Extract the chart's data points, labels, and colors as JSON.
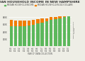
{
  "title": "MEDIAN HOUSEHOLD INCOME IN NEW HAMPSHIRE",
  "legend1": "MEDIAN HOUSEHOLD INCOME",
  "legend2": "MEDIAN HOUSEHOLD IN 2023 DOLLARS",
  "xlabel": "YEAR OF DATA COLLECTION",
  "years": [
    "2010",
    "2011",
    "2012",
    "2013",
    "2014",
    "2015",
    "2016",
    "2017",
    "2018",
    "2019",
    "2020",
    "2021",
    "2022",
    "2023"
  ],
  "nominal": [
    55000,
    54000,
    55000,
    55000,
    56000,
    58000,
    62000,
    65000,
    68000,
    72000,
    74000,
    77000,
    80000,
    82000
  ],
  "real": [
    73000,
    71000,
    70000,
    70000,
    71000,
    72000,
    75000,
    76000,
    77000,
    80000,
    80000,
    82000,
    83000,
    82000
  ],
  "bar_color_nominal": "#5cb85c",
  "bar_color_real": "#f07d00",
  "background_color": "#eeeee6",
  "title_fontsize": 3.2,
  "tick_fontsize": 1.9,
  "legend_fontsize": 1.8,
  "ylabel": "MEDIAN HOUSEHOLD\nINCOME",
  "ylim": [
    0,
    90000
  ],
  "ytick_vals": [
    0,
    20000,
    40000,
    60000,
    80000
  ],
  "ytick_labels": [
    "",
    "$20K",
    "$40K",
    "$60K",
    "$80K"
  ]
}
